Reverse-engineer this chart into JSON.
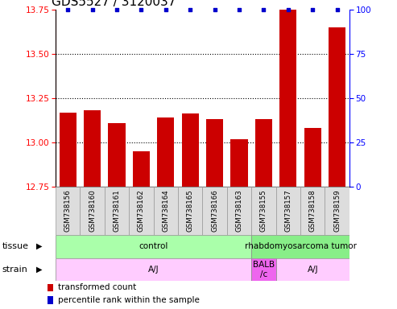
{
  "title": "GDS5527 / 3120037",
  "samples": [
    "GSM738156",
    "GSM738160",
    "GSM738161",
    "GSM738162",
    "GSM738164",
    "GSM738165",
    "GSM738166",
    "GSM738163",
    "GSM738155",
    "GSM738157",
    "GSM738158",
    "GSM738159"
  ],
  "bar_values": [
    13.17,
    13.18,
    13.11,
    12.95,
    13.14,
    13.165,
    13.13,
    13.02,
    13.13,
    13.75,
    13.08,
    13.65
  ],
  "ylim_left": [
    12.75,
    13.75
  ],
  "ylim_right": [
    0,
    100
  ],
  "yticks_left": [
    12.75,
    13.0,
    13.25,
    13.5,
    13.75
  ],
  "yticks_right": [
    0,
    25,
    50,
    75,
    100
  ],
  "bar_color": "#cc0000",
  "dot_color": "#0000cc",
  "dotted_gridlines": [
    13.0,
    13.25,
    13.5
  ],
  "bar_width": 0.7,
  "title_fontsize": 11,
  "tick_fontsize": 7.5,
  "sample_label_fontsize": 6.2,
  "legend_bar_label": "transformed count",
  "legend_dot_label": "percentile rank within the sample",
  "tissue_data": [
    {
      "label": "control",
      "start": 0,
      "end": 8,
      "color": "#aaffaa"
    },
    {
      "label": "rhabdomyosarcoma tumor",
      "start": 8,
      "end": 12,
      "color": "#88ee88"
    }
  ],
  "strain_data": [
    {
      "label": "A/J",
      "start": 0,
      "end": 8,
      "color": "#ffccff"
    },
    {
      "label": "BALB\n/c",
      "start": 8,
      "end": 9,
      "color": "#ee66ee"
    },
    {
      "label": "A/J",
      "start": 9,
      "end": 12,
      "color": "#ffccff"
    }
  ]
}
